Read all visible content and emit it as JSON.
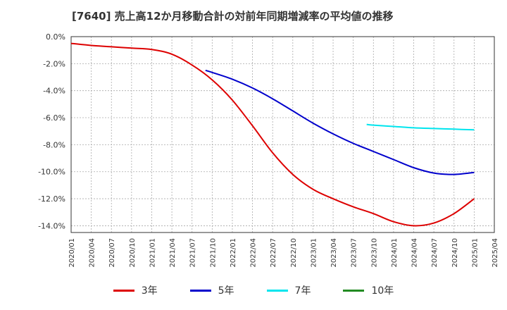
{
  "chart_data": {
    "type": "line",
    "title": "[7640]  売上高12か月移動合計の対前年同期増減率の平均値の推移",
    "x_ticks": [
      "2020/01",
      "2020/04",
      "2020/07",
      "2020/10",
      "2021/01",
      "2021/04",
      "2021/07",
      "2021/10",
      "2022/01",
      "2022/04",
      "2022/07",
      "2022/10",
      "2023/01",
      "2023/04",
      "2023/07",
      "2023/10",
      "2024/01",
      "2024/04",
      "2024/07",
      "2024/10",
      "2025/01",
      "2025/04"
    ],
    "y_ticks": [
      "0.0%",
      "-2.0%",
      "-4.0%",
      "-6.0%",
      "-8.0%",
      "-10.0%",
      "-12.0%",
      "-14.0%"
    ],
    "ylim": [
      -14.5,
      0
    ],
    "grid": true,
    "legend_position": "bottom",
    "series": [
      {
        "name": "3年",
        "color": "#dd0000",
        "points": [
          [
            "2020/01",
            -0.5
          ],
          [
            "2020/04",
            -0.65
          ],
          [
            "2020/07",
            -0.75
          ],
          [
            "2020/10",
            -0.85
          ],
          [
            "2021/01",
            -0.95
          ],
          [
            "2021/04",
            -1.3
          ],
          [
            "2021/07",
            -2.1
          ],
          [
            "2021/10",
            -3.2
          ],
          [
            "2022/01",
            -4.7
          ],
          [
            "2022/04",
            -6.6
          ],
          [
            "2022/07",
            -8.6
          ],
          [
            "2022/10",
            -10.2
          ],
          [
            "2023/01",
            -11.3
          ],
          [
            "2023/04",
            -12.0
          ],
          [
            "2023/07",
            -12.6
          ],
          [
            "2023/10",
            -13.1
          ],
          [
            "2024/01",
            -13.7
          ],
          [
            "2024/04",
            -14.0
          ],
          [
            "2024/07",
            -13.8
          ],
          [
            "2024/10",
            -13.1
          ],
          [
            "2025/01",
            -12.0
          ]
        ]
      },
      {
        "name": "5年",
        "color": "#0000cc",
        "points": [
          [
            "2021/09",
            -2.5
          ],
          [
            "2021/10",
            -2.65
          ],
          [
            "2022/01",
            -3.15
          ],
          [
            "2022/04",
            -3.8
          ],
          [
            "2022/07",
            -4.6
          ],
          [
            "2022/10",
            -5.5
          ],
          [
            "2023/01",
            -6.4
          ],
          [
            "2023/04",
            -7.2
          ],
          [
            "2023/07",
            -7.9
          ],
          [
            "2023/10",
            -8.5
          ],
          [
            "2024/01",
            -9.1
          ],
          [
            "2024/04",
            -9.7
          ],
          [
            "2024/07",
            -10.1
          ],
          [
            "2024/10",
            -10.2
          ],
          [
            "2025/01",
            -10.05
          ]
        ]
      },
      {
        "name": "7年",
        "color": "#00e5ee",
        "points": [
          [
            "2023/09",
            -6.5
          ],
          [
            "2023/10",
            -6.55
          ],
          [
            "2024/01",
            -6.65
          ],
          [
            "2024/04",
            -6.75
          ],
          [
            "2024/07",
            -6.8
          ],
          [
            "2024/10",
            -6.85
          ],
          [
            "2025/01",
            -6.9
          ]
        ]
      },
      {
        "name": "10年",
        "color": "#228b22",
        "points": []
      }
    ]
  }
}
